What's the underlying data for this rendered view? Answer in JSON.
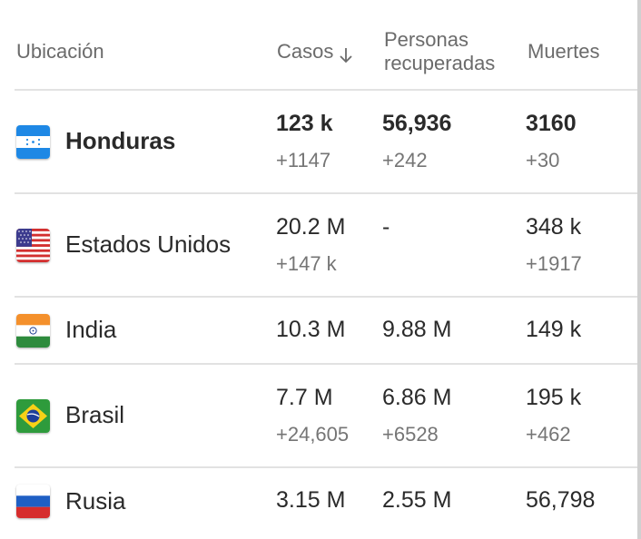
{
  "header": {
    "location": "Ubicación",
    "cases": "Casos",
    "recovered_line1": "Personas",
    "recovered_line2": "recuperadas",
    "deaths": "Muertes"
  },
  "rows": [
    {
      "country": "Honduras",
      "flag": "honduras-flag",
      "cases": "123 k",
      "cases_delta": "+1147",
      "recovered": "56,936",
      "recovered_delta": "+242",
      "deaths": "3160",
      "deaths_delta": "+30"
    },
    {
      "country": "Estados Unidos",
      "flag": "usa-flag",
      "cases": "20.2 M",
      "cases_delta": "+147 k",
      "recovered": "-",
      "recovered_delta": "",
      "deaths": "348 k",
      "deaths_delta": "+1917"
    },
    {
      "country": "India",
      "flag": "india-flag",
      "cases": "10.3 M",
      "cases_delta": "",
      "recovered": "9.88 M",
      "recovered_delta": "",
      "deaths": "149 k",
      "deaths_delta": ""
    },
    {
      "country": "Brasil",
      "flag": "brazil-flag",
      "cases": "7.7 M",
      "cases_delta": "+24,605",
      "recovered": "6.86 M",
      "recovered_delta": "+6528",
      "deaths": "195 k",
      "deaths_delta": "+462"
    },
    {
      "country": "Rusia",
      "flag": "russia-flag",
      "cases": "3.15 M",
      "cases_delta": "",
      "recovered": "2.55 M",
      "recovered_delta": "",
      "deaths": "56,798",
      "deaths_delta": ""
    }
  ]
}
